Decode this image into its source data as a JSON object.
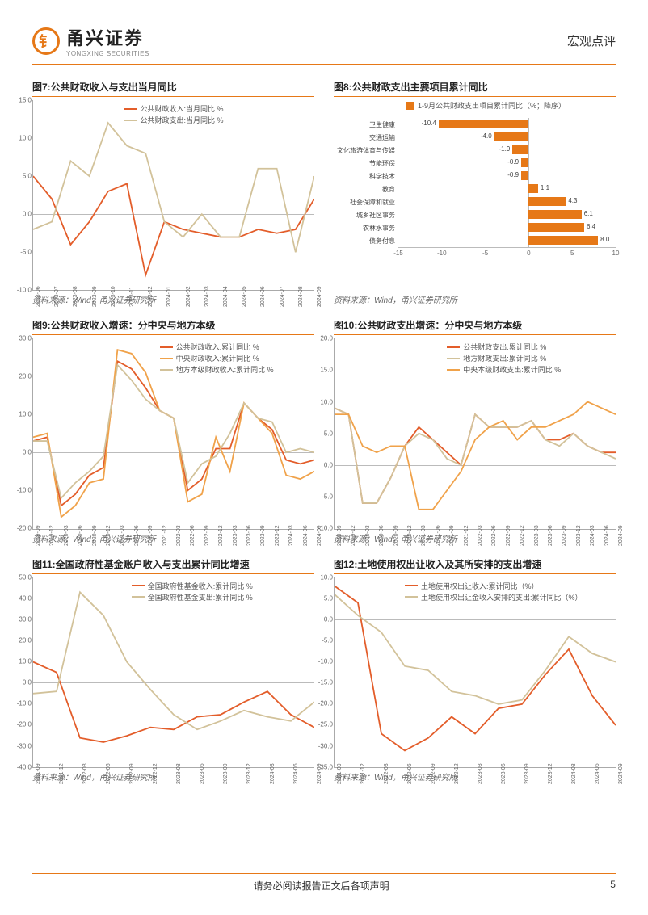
{
  "colors": {
    "brand": "#e67817",
    "series_a": "#e35d2a",
    "series_b": "#d2c29a",
    "series_c": "#f0a24a",
    "grid": "#cccccc",
    "text": "#333333"
  },
  "header": {
    "logo_cn": "甬兴证券",
    "logo_en": "YONGXING SECURITIES",
    "logo_glyph": "钅",
    "right": "宏观点评"
  },
  "footer": {
    "disclaimer": "请务必阅读报告正文后各项声明",
    "page": "5"
  },
  "source_text": "资料来源：Wind，甬兴证券研究所",
  "chart7": {
    "title": "图7:公共财政收入与支出当月同比",
    "legend": [
      "公共财政收入:当月同比 %",
      "公共财政支出:当月同比 %"
    ],
    "ylim": [
      -10,
      15
    ],
    "yticks": [
      -10,
      -5,
      0,
      5,
      10,
      15
    ],
    "xticks": [
      "2023-06",
      "2023-07",
      "2023-08",
      "2023-09",
      "2023-10",
      "2023-11",
      "2023-12",
      "2024-01",
      "2024-02",
      "2024-03",
      "2024-04",
      "2024-05",
      "2024-06",
      "2024-07",
      "2024-08",
      "2024-09"
    ],
    "series": [
      {
        "color": "#e35d2a",
        "values": [
          5.0,
          2.0,
          -4.0,
          -1.0,
          3.0,
          4.0,
          -8.0,
          -1.0,
          -2.0,
          -2.5,
          -3.0,
          -3.0,
          -2.0,
          -2.5,
          -2.0,
          2.0
        ]
      },
      {
        "color": "#d2c29a",
        "values": [
          -2.0,
          -1.0,
          7.0,
          5.0,
          12.0,
          9.0,
          8.0,
          -1.0,
          -3.0,
          0.0,
          -3.0,
          -3.0,
          6.0,
          6.0,
          -5.0,
          5.0
        ]
      }
    ]
  },
  "chart8": {
    "title": "图8:公共财政支出主要项目累计同比",
    "legend": "1-9月公共财政支出项目累计同比（%；降序）",
    "xlim": [
      -15,
      10
    ],
    "xticks": [
      -15,
      -10,
      -5,
      0,
      5,
      10
    ],
    "bars": [
      {
        "label": "卫生健康",
        "value": -10.4
      },
      {
        "label": "交通运输",
        "value": -4.0
      },
      {
        "label": "文化旅游体育与传媒",
        "value": -1.9
      },
      {
        "label": "节能环保",
        "value": -0.9
      },
      {
        "label": "科学技术",
        "value": -0.9
      },
      {
        "label": "教育",
        "value": 1.1
      },
      {
        "label": "社会保障和就业",
        "value": 4.3
      },
      {
        "label": "城乡社区事务",
        "value": 6.1
      },
      {
        "label": "农林水事务",
        "value": 6.4
      },
      {
        "label": "债务付息",
        "value": 8.0
      }
    ]
  },
  "chart9": {
    "title": "图9:公共财政收入增速：分中央与地方本级",
    "legend": [
      "公共财政收入:累计同比 %",
      "中央财政收入:累计同比 %",
      "地方本级财政收入:累计同比 %"
    ],
    "ylim": [
      -20,
      30
    ],
    "yticks": [
      -20,
      -10,
      0,
      10,
      20,
      30
    ],
    "xticks": [
      "2019-09",
      "2019-12",
      "2020-03",
      "2020-06",
      "2020-09",
      "2020-12",
      "2021-03",
      "2021-06",
      "2021-09",
      "2021-12",
      "2022-03",
      "2022-06",
      "2022-09",
      "2022-12",
      "2023-03",
      "2023-06",
      "2023-09",
      "2023-12",
      "2024-03",
      "2024-06",
      "2024-09"
    ],
    "series": [
      {
        "color": "#e35d2a",
        "values": [
          3,
          4,
          -14,
          -11,
          -6,
          -4,
          24,
          22,
          17,
          11,
          9,
          -10,
          -7,
          1,
          1,
          13,
          9,
          6,
          -2,
          -3,
          -2
        ]
      },
      {
        "color": "#f0a24a",
        "values": [
          4,
          5,
          -17,
          -14,
          -8,
          -7,
          27,
          26,
          21,
          11,
          9,
          -13,
          -11,
          4,
          -5,
          13,
          9,
          5,
          -6,
          -7,
          -5
        ]
      },
      {
        "color": "#d2c29a",
        "values": [
          3,
          3,
          -12,
          -8,
          -5,
          -1,
          23,
          19,
          14,
          11,
          9,
          -8,
          -3,
          -1,
          5,
          13,
          9,
          8,
          0,
          1,
          0
        ]
      }
    ]
  },
  "chart10": {
    "title": "图10:公共财政支出增速：分中央与地方本级",
    "legend": [
      "公共财政支出:累计同比 %",
      "地方财政支出:累计同比 %",
      "中央本级财政支出:累计同比 %"
    ],
    "ylim": [
      -10,
      20
    ],
    "yticks": [
      -10,
      -5,
      0,
      5,
      10,
      15,
      20
    ],
    "xticks": [
      "2019-09",
      "2019-12",
      "2020-03",
      "2020-06",
      "2020-09",
      "2020-12",
      "2021-03",
      "2021-06",
      "2021-09",
      "2021-12",
      "2022-03",
      "2022-06",
      "2022-09",
      "2022-12",
      "2023-03",
      "2023-06",
      "2023-09",
      "2023-12",
      "2024-03",
      "2024-06",
      "2024-09"
    ],
    "series": [
      {
        "color": "#e35d2a",
        "values": [
          9,
          8,
          -6,
          -6,
          -2,
          3,
          6,
          4,
          2,
          0,
          8,
          6,
          6,
          6,
          7,
          4,
          4,
          5,
          3,
          2,
          2
        ]
      },
      {
        "color": "#d2c29a",
        "values": [
          9,
          8,
          -6,
          -6,
          -2,
          3,
          5,
          4,
          1,
          0,
          8,
          6,
          6,
          6,
          7,
          4,
          3,
          5,
          3,
          2,
          1
        ]
      },
      {
        "color": "#f0a24a",
        "values": [
          8,
          8,
          3,
          2,
          3,
          3,
          -7,
          -7,
          -4,
          -1,
          4,
          6,
          7,
          4,
          6,
          6,
          7,
          8,
          10,
          9,
          8
        ]
      }
    ]
  },
  "chart11": {
    "title": "图11:全国政府性基金账户收入与支出累计同比增速",
    "legend": [
      "全国政府性基金收入:累计同比 %",
      "全国政府性基金支出:累计同比 %"
    ],
    "ylim": [
      -40,
      50
    ],
    "yticks": [
      -40,
      -30,
      -20,
      -10,
      0,
      10,
      20,
      30,
      40,
      50
    ],
    "xticks": [
      "2021-09",
      "2021-12",
      "2022-03",
      "2022-06",
      "2022-09",
      "2022-12",
      "2023-03",
      "2023-06",
      "2023-09",
      "2023-12",
      "2024-03",
      "2024-06",
      "2024-09"
    ],
    "series": [
      {
        "color": "#e35d2a",
        "values": [
          10,
          5,
          -26,
          -28,
          -25,
          -21,
          -22,
          -16,
          -15,
          -9,
          -4,
          -15,
          -21
        ]
      },
      {
        "color": "#d2c29a",
        "values": [
          -5,
          -4,
          43,
          32,
          10,
          -3,
          -15,
          -22,
          -18,
          -13,
          -16,
          -18,
          -9
        ]
      }
    ]
  },
  "chart12": {
    "title": "图12:土地使用权出让收入及其所安排的支出增速",
    "legend": [
      "土地使用权出让收入:累计同比（%）",
      "土地使用权出让金收入安排的支出:累计同比（%）"
    ],
    "ylim": [
      -35,
      10
    ],
    "yticks": [
      -35,
      -30,
      -25,
      -20,
      -15,
      -10,
      -5,
      0,
      5,
      10
    ],
    "xticks": [
      "2021-09",
      "2021-12",
      "2022-03",
      "2022-06",
      "2022-09",
      "2022-12",
      "2023-03",
      "2023-06",
      "2023-09",
      "2023-12",
      "2024-03",
      "2024-06",
      "2024-09"
    ],
    "series": [
      {
        "color": "#e35d2a",
        "values": [
          8,
          4,
          -27,
          -31,
          -28,
          -23,
          -27,
          -21,
          -20,
          -13,
          -7,
          -18,
          -25
        ]
      },
      {
        "color": "#d2c29a",
        "values": [
          6,
          1,
          -3,
          -11,
          -12,
          -17,
          -18,
          -20,
          -19,
          -12,
          -4,
          -8,
          -10
        ]
      }
    ]
  }
}
